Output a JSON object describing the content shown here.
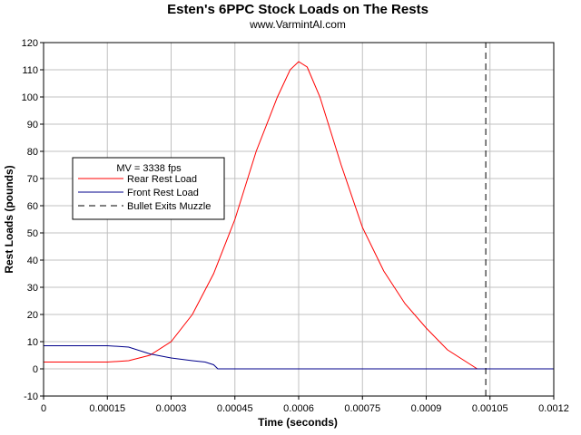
{
  "chart_data": {
    "type": "line",
    "title": "Esten's 6PPC Stock Loads on The Rests",
    "subtitle": "www.VarmintAl.com",
    "xlabel": "Time (seconds)",
    "ylabel": "Rest Loads (pounds)",
    "xlim": [
      0,
      0.0012
    ],
    "ylim": [
      -10,
      120
    ],
    "xticks": [
      0,
      0.00015,
      0.0003,
      0.00045,
      0.0006,
      0.00075,
      0.0009,
      0.00105,
      0.0012
    ],
    "xtick_labels": [
      "0",
      "0.00015",
      "0.0003",
      "0.00045",
      "0.0006",
      "0.00075",
      "0.0009",
      "0.00105",
      "0.0012"
    ],
    "yticks": [
      -10,
      0,
      10,
      20,
      30,
      40,
      50,
      60,
      70,
      80,
      90,
      100,
      110,
      120
    ],
    "ytick_labels": [
      "-10",
      "0",
      "10",
      "20",
      "30",
      "40",
      "50",
      "60",
      "70",
      "80",
      "90",
      "100",
      "110",
      "120"
    ],
    "grid": true,
    "legend": {
      "title": "MV = 3338 fps",
      "placement": "left-middle"
    },
    "series": [
      {
        "name": "Rear Rest Load",
        "color": "#ff0000",
        "style": "solid",
        "x": [
          0,
          0.00015,
          0.0002,
          0.00025,
          0.0003,
          0.00035,
          0.0004,
          0.00045,
          0.0005,
          0.00055,
          0.00058,
          0.0006,
          0.00062,
          0.00065,
          0.0007,
          0.00075,
          0.0008,
          0.00085,
          0.0009,
          0.00095,
          0.001,
          0.00102,
          0.00104,
          0.0012
        ],
        "y": [
          2.5,
          2.5,
          3,
          5,
          10,
          20,
          35,
          55,
          80,
          100,
          110,
          113,
          111,
          100,
          75,
          52,
          36,
          24,
          15,
          7,
          2,
          0,
          0,
          0
        ]
      },
      {
        "name": "Front Rest Load",
        "color": "#00008b",
        "style": "solid",
        "x": [
          0,
          0.00015,
          0.0002,
          0.00025,
          0.0003,
          0.00035,
          0.00038,
          0.0004,
          0.00041,
          0.0012
        ],
        "y": [
          8.5,
          8.5,
          8,
          5.5,
          4,
          3,
          2.5,
          1.5,
          0,
          0
        ]
      },
      {
        "name": "Bullet Exits Muzzle",
        "color": "#000000",
        "style": "dashed",
        "x": [
          0.00104,
          0.00104
        ],
        "y": [
          -10,
          120
        ]
      }
    ]
  }
}
